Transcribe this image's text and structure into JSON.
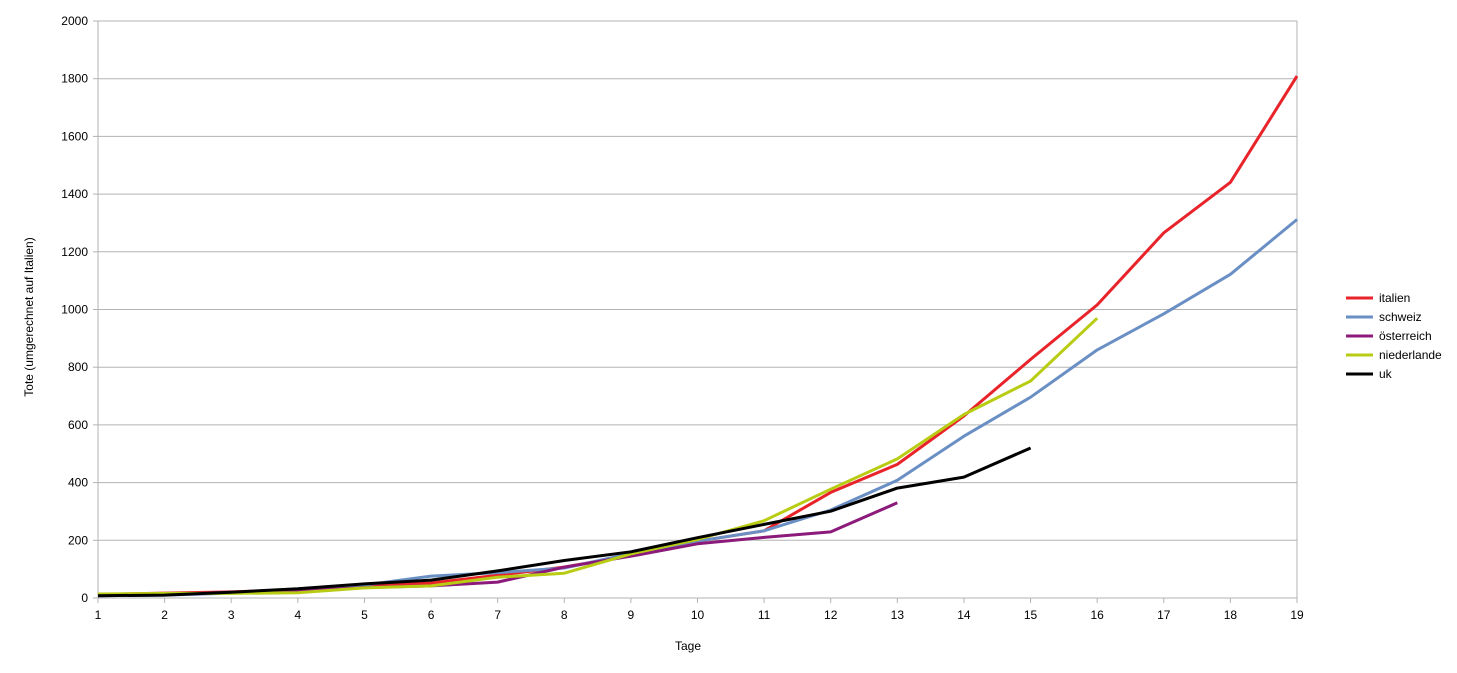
{
  "chart_data": {
    "type": "line",
    "xlabel": "Tage",
    "ylabel": "Tote (umgerechnet auf Italien)",
    "xlim": [
      1,
      19
    ],
    "ylim": [
      0,
      2000
    ],
    "x_ticks": [
      1,
      2,
      3,
      4,
      5,
      6,
      7,
      8,
      9,
      10,
      11,
      12,
      13,
      14,
      15,
      16,
      17,
      18,
      19
    ],
    "y_ticks": [
      0,
      200,
      400,
      600,
      800,
      1000,
      1200,
      1400,
      1600,
      1800,
      2000
    ],
    "grid": "horizontal",
    "legend": "right",
    "series": [
      {
        "name": "italien",
        "color": "#e8232a",
        "x": [
          1,
          2,
          3,
          4,
          5,
          6,
          7,
          8,
          9,
          10,
          11,
          12,
          13,
          14,
          15,
          16,
          17,
          18,
          19
        ],
        "values": [
          12,
          17,
          21,
          29,
          41,
          52,
          79,
          107,
          148,
          197,
          233,
          366,
          463,
          631,
          827,
          1016,
          1266,
          1441,
          1809
        ]
      },
      {
        "name": "schweiz",
        "color": "#6a8fc4",
        "x": [
          1,
          2,
          3,
          4,
          5,
          6,
          7,
          8,
          9,
          10,
          11,
          12,
          13,
          14,
          15,
          16,
          17,
          18,
          19
        ],
        "values": [
          8,
          10,
          17,
          27,
          45,
          76,
          88,
          104,
          154,
          197,
          233,
          305,
          408,
          561,
          696,
          860,
          985,
          1122,
          1312
        ]
      },
      {
        "name": "österreich",
        "color": "#8b1a7a",
        "x": [
          1,
          2,
          3,
          4,
          5,
          6,
          7,
          8,
          9,
          10,
          11,
          12,
          13
        ],
        "values": [
          12,
          12,
          20,
          25,
          36,
          42,
          55,
          107,
          145,
          188,
          210,
          229,
          330
        ]
      },
      {
        "name": "niederlande",
        "color": "#b9cc14",
        "x": [
          1,
          2,
          3,
          4,
          5,
          6,
          7,
          8,
          9,
          10,
          11,
          12,
          13,
          14,
          15,
          16
        ],
        "values": [
          14,
          16,
          16,
          18,
          35,
          42,
          72,
          86,
          153,
          203,
          268,
          377,
          482,
          636,
          752,
          970
        ]
      },
      {
        "name": "uk",
        "color": "#000000",
        "x": [
          1,
          2,
          3,
          4,
          5,
          6,
          7,
          8,
          9,
          10,
          11,
          12,
          13,
          14,
          15
        ],
        "values": [
          8,
          10,
          20,
          32,
          49,
          62,
          94,
          130,
          160,
          209,
          255,
          301,
          381,
          419,
          520
        ]
      }
    ]
  }
}
